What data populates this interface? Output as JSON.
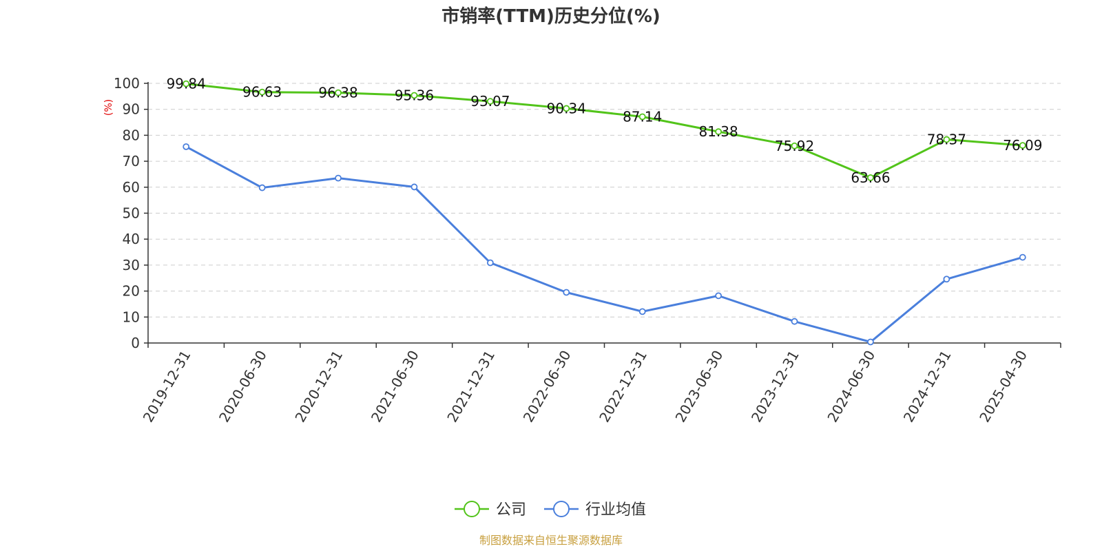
{
  "chart_data": {
    "type": "line",
    "title": "市销率(TTM)历史分位(%)",
    "ylabel": "(%)",
    "ylim": [
      0,
      100
    ],
    "yticks": [
      0,
      10,
      20,
      30,
      40,
      50,
      60,
      70,
      80,
      90,
      100
    ],
    "grid": true,
    "legend_position": "bottom",
    "categories": [
      "2019-12-31",
      "2020-06-30",
      "2020-12-31",
      "2021-06-30",
      "2021-12-31",
      "2022-06-30",
      "2022-12-31",
      "2023-06-30",
      "2023-12-31",
      "2024-06-30",
      "2024-12-31",
      "2025-04-30"
    ],
    "series": [
      {
        "name": "公司",
        "color": "#52c41a",
        "values": [
          99.84,
          96.63,
          96.38,
          95.36,
          93.07,
          90.34,
          87.14,
          81.38,
          75.92,
          63.66,
          78.37,
          76.09
        ],
        "labels": [
          "99.84",
          "96.63",
          "96.38",
          "95.36",
          "93.07",
          "90.34",
          "87.14",
          "81.38",
          "75.92",
          "63.66",
          "78.37",
          "76.09"
        ]
      },
      {
        "name": "行业均值",
        "color": "#4a7fdc",
        "values": [
          75.6,
          59.8,
          63.5,
          60.1,
          30.9,
          19.5,
          12.1,
          18.2,
          8.3,
          0.4,
          24.6,
          33.0
        ]
      }
    ],
    "source": "制图数据来自恒生聚源数据库",
    "ylabel_color": "#e00000",
    "source_color": "#c8a040"
  }
}
